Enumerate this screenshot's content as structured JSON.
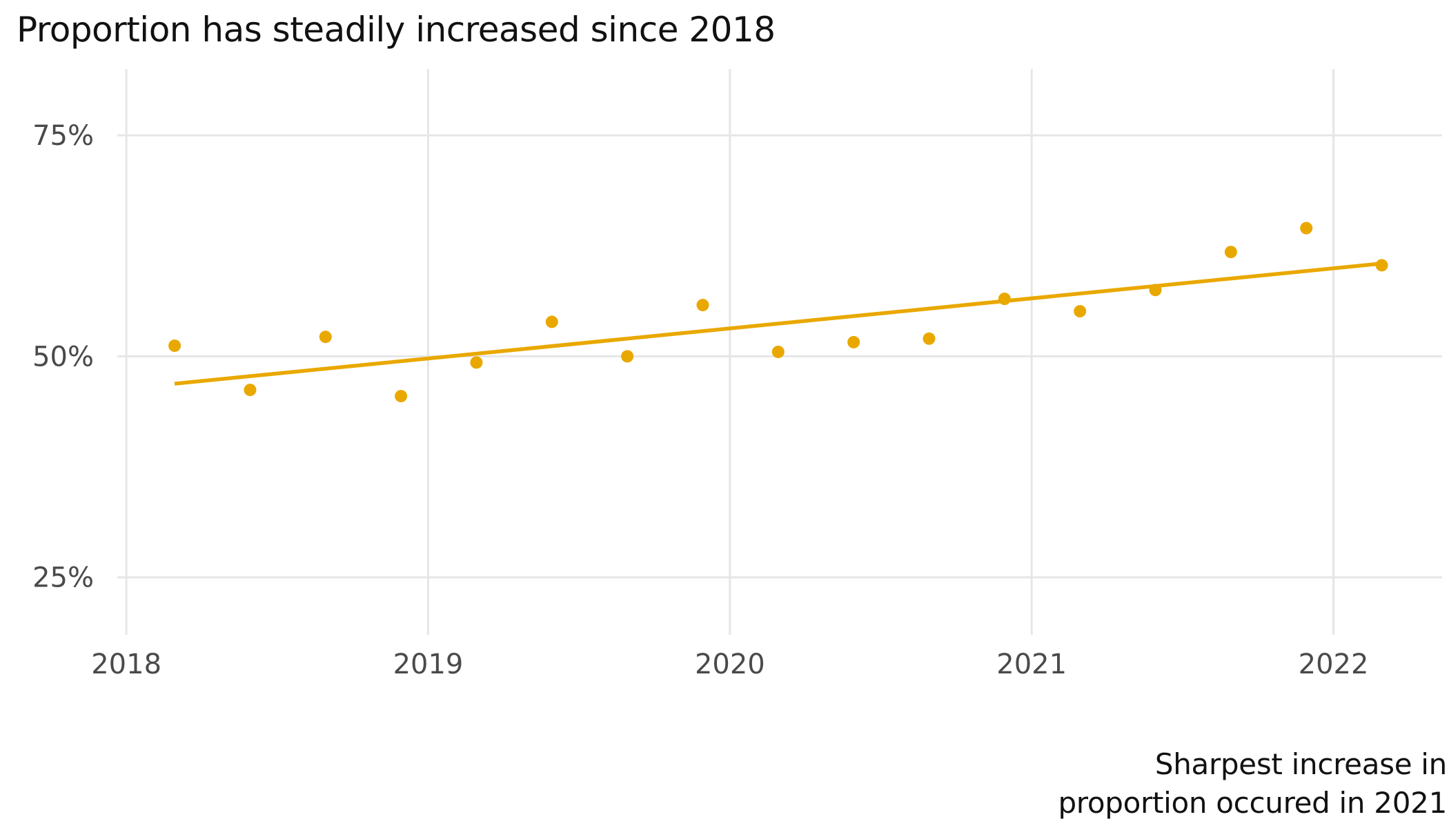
{
  "chart_data": {
    "type": "scatter",
    "title": "Proportion has steadily increased since 2018",
    "caption_lines": [
      "Sharpest increase in",
      "proportion occured in 2021"
    ],
    "xlabel": "",
    "ylabel": "",
    "x_ticks": [
      2018,
      2019,
      2020,
      2021,
      2022
    ],
    "x_tick_labels": [
      "2018",
      "2019",
      "2020",
      "2021",
      "2022"
    ],
    "y_ticks": [
      25,
      50,
      75
    ],
    "y_tick_labels": [
      "25%",
      "50%",
      "75%"
    ],
    "xlim": [
      2017.97,
      2022.36
    ],
    "ylim": [
      18.5,
      82.5
    ],
    "grid": true,
    "color": "#E9A800",
    "series": [
      {
        "type": "points",
        "points": [
          {
            "x": 2018.16,
            "y": 51.2
          },
          {
            "x": 2018.41,
            "y": 46.2
          },
          {
            "x": 2018.66,
            "y": 52.2
          },
          {
            "x": 2018.91,
            "y": 45.5
          },
          {
            "x": 2019.16,
            "y": 49.3
          },
          {
            "x": 2019.41,
            "y": 53.9
          },
          {
            "x": 2019.66,
            "y": 50.0
          },
          {
            "x": 2019.91,
            "y": 55.8
          },
          {
            "x": 2020.16,
            "y": 50.5
          },
          {
            "x": 2020.41,
            "y": 51.6
          },
          {
            "x": 2020.66,
            "y": 52.0
          },
          {
            "x": 2020.91,
            "y": 56.5
          },
          {
            "x": 2021.16,
            "y": 55.1
          },
          {
            "x": 2021.41,
            "y": 57.5
          },
          {
            "x": 2021.66,
            "y": 61.8
          },
          {
            "x": 2021.91,
            "y": 64.5
          },
          {
            "x": 2022.16,
            "y": 60.3
          }
        ]
      },
      {
        "type": "trend",
        "points": [
          {
            "x": 2018.16,
            "y": 46.9
          },
          {
            "x": 2022.16,
            "y": 60.5
          }
        ]
      }
    ]
  }
}
